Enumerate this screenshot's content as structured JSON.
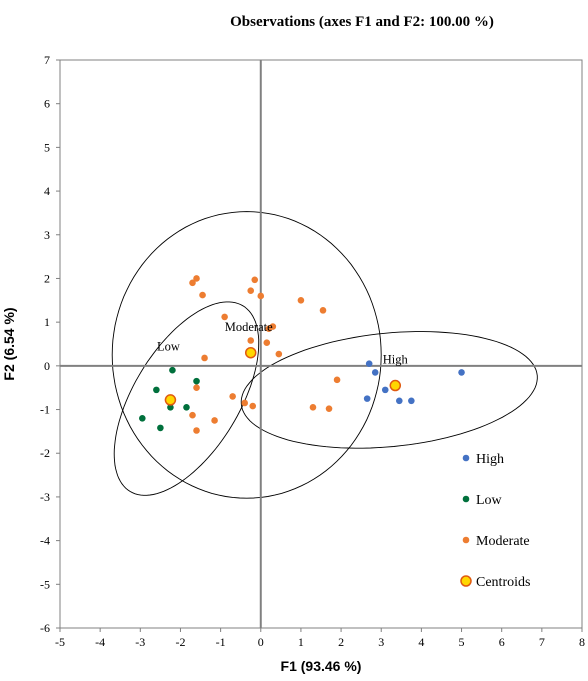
{
  "chart_data": {
    "type": "scatter",
    "title": "Observations (axes F1 and F2: 100.00 %)",
    "xlabel": "F1 (93.46 %)",
    "ylabel": "F2 (6.54 %)",
    "xlim": [
      -5,
      8
    ],
    "ylim": [
      -6,
      7
    ],
    "xticks": [
      "-5",
      "-4",
      "-3",
      "-2",
      "-1",
      "0",
      "1",
      "2",
      "3",
      "4",
      "5",
      "6",
      "7",
      "8"
    ],
    "yticks": [
      "-6",
      "-5",
      "-4",
      "-3",
      "-2",
      "-1",
      "0",
      "1",
      "2",
      "3",
      "4",
      "5",
      "6",
      "7"
    ],
    "grid": false,
    "legend_position": "lower-right",
    "series": [
      {
        "name": "High",
        "color": "#4472C4",
        "points": [
          {
            "x": 2.7,
            "y": 0.05
          },
          {
            "x": 2.85,
            "y": -0.15
          },
          {
            "x": 3.1,
            "y": -0.55
          },
          {
            "x": 2.65,
            "y": -0.75
          },
          {
            "x": 3.45,
            "y": -0.8
          },
          {
            "x": 3.75,
            "y": -0.8
          },
          {
            "x": 5.0,
            "y": -0.15
          }
        ]
      },
      {
        "name": "Low",
        "color": "#00703C",
        "points": [
          {
            "x": -2.2,
            "y": -0.1
          },
          {
            "x": -1.6,
            "y": -0.35
          },
          {
            "x": -2.6,
            "y": -0.55
          },
          {
            "x": -2.25,
            "y": -0.95
          },
          {
            "x": -1.85,
            "y": -0.95
          },
          {
            "x": -2.95,
            "y": -1.2
          },
          {
            "x": -2.5,
            "y": -1.42
          }
        ]
      },
      {
        "name": "Moderate",
        "color": "#ED7D31",
        "points": [
          {
            "x": -1.6,
            "y": 2.0
          },
          {
            "x": -1.7,
            "y": 1.9
          },
          {
            "x": -0.15,
            "y": 1.97
          },
          {
            "x": -0.25,
            "y": 1.72
          },
          {
            "x": 0.0,
            "y": 1.6
          },
          {
            "x": -1.45,
            "y": 1.62
          },
          {
            "x": 1.0,
            "y": 1.5
          },
          {
            "x": 1.55,
            "y": 1.27
          },
          {
            "x": -0.9,
            "y": 1.12
          },
          {
            "x": 0.2,
            "y": 0.85
          },
          {
            "x": 0.3,
            "y": 0.9
          },
          {
            "x": -0.25,
            "y": 0.58
          },
          {
            "x": 0.15,
            "y": 0.53
          },
          {
            "x": 0.45,
            "y": 0.27
          },
          {
            "x": -1.4,
            "y": 0.18
          },
          {
            "x": -1.6,
            "y": -0.5
          },
          {
            "x": 1.9,
            "y": -0.32
          },
          {
            "x": -0.7,
            "y": -0.7
          },
          {
            "x": -0.4,
            "y": -0.85
          },
          {
            "x": -0.2,
            "y": -0.92
          },
          {
            "x": 1.3,
            "y": -0.95
          },
          {
            "x": 1.7,
            "y": -0.98
          },
          {
            "x": -1.7,
            "y": -1.13
          },
          {
            "x": -1.15,
            "y": -1.25
          },
          {
            "x": -1.6,
            "y": -1.48
          }
        ]
      }
    ],
    "centroids": {
      "name": "Centroids",
      "fill": "#FFD700",
      "stroke": "#E05A10",
      "points": [
        {
          "label": "High",
          "x": 3.35,
          "y": -0.45
        },
        {
          "label": "Low",
          "x": -2.25,
          "y": -0.78
        },
        {
          "label": "Moderate",
          "x": -0.25,
          "y": 0.3
        }
      ]
    },
    "ellipses": [
      {
        "group": "Moderate",
        "cx": -0.35,
        "cy": 0.25,
        "rx": 3.35,
        "ry": 3.28,
        "angle": 0
      },
      {
        "group": "Low",
        "cx": -1.85,
        "cy": -0.75,
        "rx": 2.55,
        "ry": 1.28,
        "angle": 55
      },
      {
        "group": "High",
        "cx": 3.2,
        "cy": -0.55,
        "rx": 3.7,
        "ry": 1.3,
        "angle": 5
      }
    ],
    "point_labels": [
      {
        "text": "High",
        "x": 3.35,
        "y": 0.05
      },
      {
        "text": "Low",
        "x": -2.3,
        "y": 0.35
      },
      {
        "text": "Moderate",
        "x": -0.3,
        "y": 0.8
      }
    ]
  }
}
